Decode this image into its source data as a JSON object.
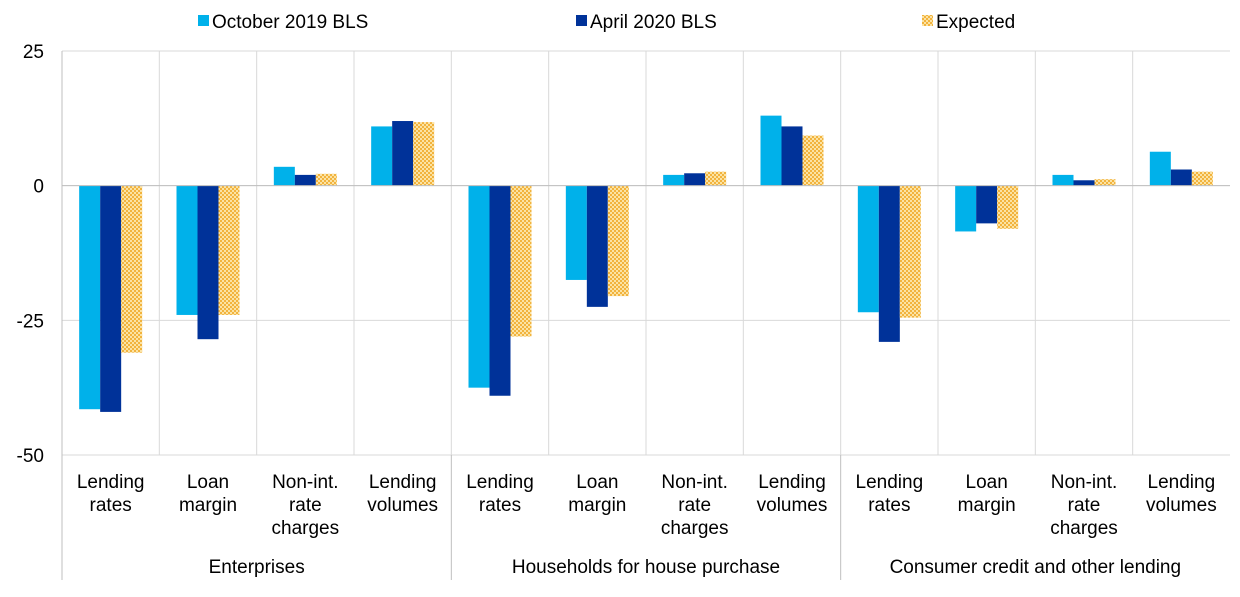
{
  "chart_data": {
    "type": "bar",
    "title": "",
    "xlabel": "",
    "ylabel": "",
    "ylim": [
      -50,
      25
    ],
    "yticks": [
      "25",
      "0",
      "-25",
      "-50"
    ],
    "grid": true,
    "legend_position": "top",
    "groups": [
      {
        "name": "Enterprises",
        "categories": [
          "Lending rates",
          "Loan margin",
          "Non-int. rate charges",
          "Lending volumes"
        ]
      },
      {
        "name": "Households for house purchase",
        "categories": [
          "Lending rates",
          "Loan margin",
          "Non-int. rate charges",
          "Lending volumes"
        ]
      },
      {
        "name": "Consumer credit and other lending",
        "categories": [
          "Lending rates",
          "Loan margin",
          "Non-int. rate charges",
          "Lending volumes"
        ]
      }
    ],
    "category_lines": [
      [
        "Lending",
        "rates"
      ],
      [
        "Loan",
        "margin"
      ],
      [
        "Non-int.",
        "rate",
        "charges"
      ],
      [
        "Lending",
        "volumes"
      ],
      [
        "Lending",
        "rates"
      ],
      [
        "Loan",
        "margin"
      ],
      [
        "Non-int.",
        "rate",
        "charges"
      ],
      [
        "Lending",
        "volumes"
      ],
      [
        "Lending",
        "rates"
      ],
      [
        "Loan",
        "margin"
      ],
      [
        "Non-int.",
        "rate",
        "charges"
      ],
      [
        "Lending",
        "volumes"
      ]
    ],
    "series": [
      {
        "name": "October 2019 BLS",
        "color": "#00b1ea",
        "pattern": "solid",
        "values": [
          -41.5,
          -24,
          3.5,
          11,
          -37.5,
          -17.5,
          2,
          13,
          -23.5,
          -8.5,
          2,
          6.3
        ]
      },
      {
        "name": "April 2020 BLS",
        "color": "#003299",
        "pattern": "solid",
        "values": [
          -42,
          -28.5,
          2,
          12,
          -39,
          -22.5,
          2.3,
          11,
          -29,
          -7,
          1,
          3
        ]
      },
      {
        "name": "Expected",
        "color": "#ffb400",
        "pattern": "dotted",
        "values": [
          -31,
          -24,
          2.2,
          11.8,
          -28,
          -20.5,
          2.6,
          9.3,
          -24.5,
          -8,
          1.2,
          2.6
        ]
      }
    ]
  }
}
